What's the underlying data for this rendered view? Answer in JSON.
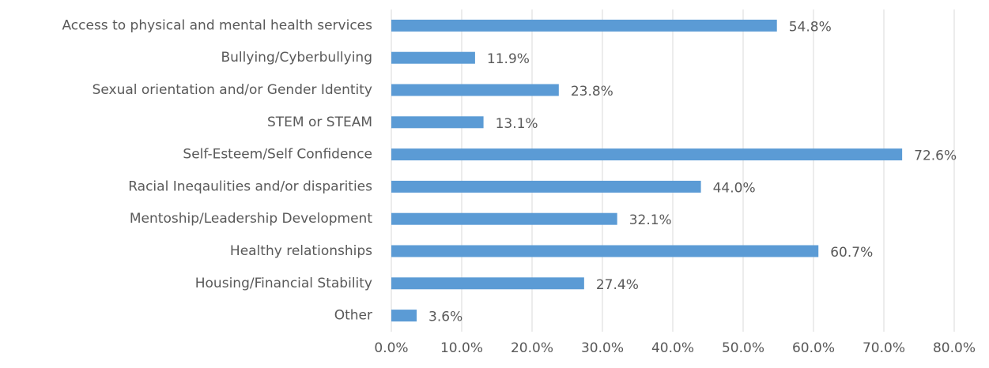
{
  "chart_data": {
    "type": "bar",
    "orientation": "horizontal",
    "categories": [
      "Access to physical and mental health services",
      "Bullying/Cyberbullying",
      "Sexual orientation and/or Gender Identity",
      "STEM or STEAM",
      "Self-Esteem/Self Confidence",
      "Racial Ineqaulities and/or disparities",
      "Mentoship/Leadership Development",
      "Healthy relationships",
      "Housing/Financial Stability",
      "Other"
    ],
    "values": [
      54.8,
      11.9,
      23.8,
      13.1,
      72.6,
      44.0,
      32.1,
      60.7,
      27.4,
      3.6
    ],
    "value_labels": [
      "54.8%",
      "11.9%",
      "23.8%",
      "13.1%",
      "72.6%",
      "44.0%",
      "32.1%",
      "60.7%",
      "27.4%",
      "3.6%"
    ],
    "color": "#5b9bd5",
    "xlim": [
      0,
      80
    ],
    "xticks": [
      {
        "value": 0,
        "label": "0.0%"
      },
      {
        "value": 10,
        "label": "10.0%"
      },
      {
        "value": 20,
        "label": "20.0%"
      },
      {
        "value": 30,
        "label": "30.0%"
      },
      {
        "value": 40,
        "label": "40.0%"
      },
      {
        "value": 50,
        "label": "50.0%"
      },
      {
        "value": 60,
        "label": "60.0%"
      },
      {
        "value": 70,
        "label": "70.0%"
      },
      {
        "value": 80,
        "label": "80.0%"
      }
    ],
    "grid": true
  }
}
